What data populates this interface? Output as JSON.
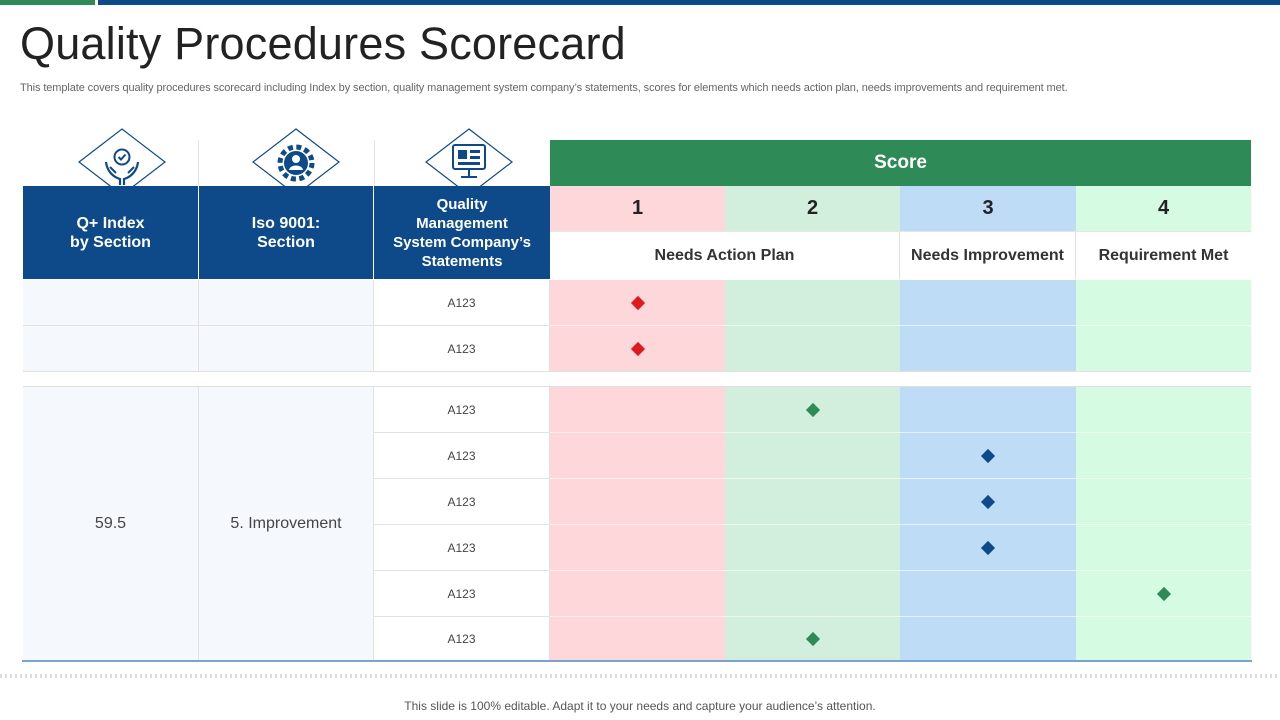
{
  "slide": {
    "title": "Quality Procedures Scorecard",
    "subtitle": "This template covers quality procedures scorecard including Index by section, quality management system company’s statements, scores for elements which needs action plan, needs improvements and requirement met.",
    "footer": "This slide is 100% editable. Adapt it to your needs and capture your audience’s attention."
  },
  "icons": [
    "quality-hands-icon",
    "gear-person-icon",
    "management-system-icon"
  ],
  "colors": {
    "header_blue": "#0e4a8a",
    "score_green": "#2e8b57",
    "score1_fill": "#fdd7da",
    "score2_fill": "#d2eedc",
    "score3_fill": "#bfdcf6",
    "score4_fill": "#d5fbe3",
    "marker_red": "#e0191f",
    "marker_green": "#2e8b57",
    "marker_blue": "#0e4a8a"
  },
  "table": {
    "headers": {
      "index": "Q+ Index\nby Section",
      "iso": "Iso 9001:\nSection",
      "statements": "Quality\nManagement\nSystem Company’s\nStatements",
      "score": "Score"
    },
    "score_numbers": [
      "1",
      "2",
      "3",
      "4"
    ],
    "score_labels": {
      "needs_action_plan": "Needs Action Plan",
      "needs_improvement": "Needs Improvement",
      "requirement_met": "Requirement Met"
    },
    "group1_rows": [
      {
        "statement": "A123",
        "score": 1
      },
      {
        "statement": "A123",
        "score": 1
      }
    ],
    "group2": {
      "index": "59.5",
      "section": "5. Improvement",
      "rows": [
        {
          "statement": "A123",
          "score": 2
        },
        {
          "statement": "A123",
          "score": 3
        },
        {
          "statement": "A123",
          "score": 3
        },
        {
          "statement": "A123",
          "score": 3
        },
        {
          "statement": "A123",
          "score": 4
        },
        {
          "statement": "A123",
          "score": 2
        }
      ]
    }
  }
}
